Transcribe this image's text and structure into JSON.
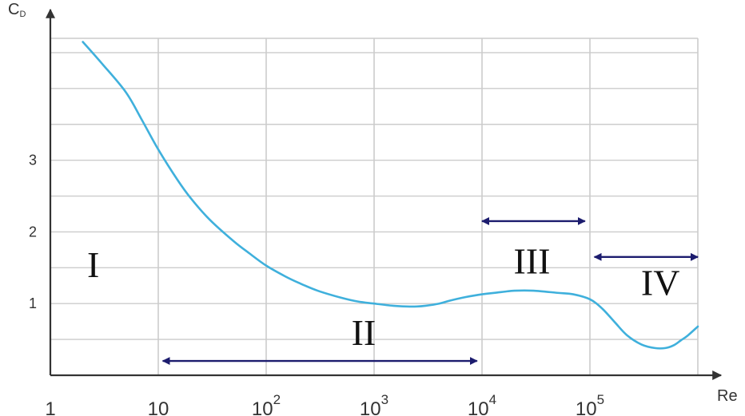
{
  "chart_data": {
    "type": "line",
    "title": "",
    "xlabel": "Re",
    "ylabel": "C",
    "ylabel_subscript": "D",
    "x_scale": "log",
    "xlim": [
      1,
      1000000
    ],
    "ylim": [
      0,
      4.7
    ],
    "grid": true,
    "x_ticks": [
      {
        "value": 1,
        "base": "1",
        "exp": ""
      },
      {
        "value": 10,
        "base": "10",
        "exp": ""
      },
      {
        "value": 100,
        "base": "10",
        "exp": "2"
      },
      {
        "value": 1000,
        "base": "10",
        "exp": "3"
      },
      {
        "value": 10000,
        "base": "10",
        "exp": "4"
      },
      {
        "value": 100000,
        "base": "10",
        "exp": "5"
      }
    ],
    "y_ticks": [
      {
        "value": 1,
        "label": "1"
      },
      {
        "value": 2,
        "label": "2"
      },
      {
        "value": 3,
        "label": "3"
      }
    ],
    "y_grid": [
      0.5,
      1,
      1.5,
      2,
      2.5,
      3,
      3.5,
      4,
      4.5
    ],
    "series": [
      {
        "color": "#3fb0dc",
        "x": [
          2,
          3,
          5,
          7,
          10,
          15,
          20,
          30,
          50,
          70,
          100,
          150,
          200,
          300,
          500,
          700,
          1000,
          1500,
          2000,
          2500,
          3000,
          4000,
          5000,
          7000,
          10000,
          15000,
          20000,
          30000,
          50000,
          70000,
          100000,
          130000,
          170000,
          220000,
          300000,
          400000,
          500000,
          600000,
          700000,
          800000,
          1000000
        ],
        "y": [
          4.65,
          4.35,
          3.95,
          3.57,
          3.15,
          2.73,
          2.47,
          2.17,
          1.87,
          1.7,
          1.53,
          1.38,
          1.29,
          1.18,
          1.08,
          1.03,
          1.0,
          0.97,
          0.96,
          0.96,
          0.97,
          1.0,
          1.04,
          1.09,
          1.13,
          1.16,
          1.18,
          1.18,
          1.15,
          1.13,
          1.06,
          0.93,
          0.74,
          0.56,
          0.43,
          0.38,
          0.38,
          0.42,
          0.49,
          0.55,
          0.68
        ]
      }
    ],
    "regions": [
      {
        "label": "I",
        "arrow": null,
        "label_at": {
          "x": 2.5,
          "y": 1.55
        }
      },
      {
        "label": "II",
        "arrow": [
          11,
          9000
        ],
        "arrow_y": 0.2,
        "label_at": {
          "x": 800,
          "y": 0.6
        }
      },
      {
        "label": "III",
        "arrow": [
          10000,
          90000
        ],
        "arrow_y": 2.15,
        "label_at": {
          "x": 29000,
          "y": 1.6
        }
      },
      {
        "label": "IV",
        "arrow": [
          110000,
          1000000
        ],
        "arrow_y": 1.65,
        "label_at": {
          "x": 450000,
          "y": 1.3
        }
      }
    ],
    "colors": {
      "curve": "#3fb0dc",
      "arrows": "#1c1c6e",
      "grid": "#cccccc",
      "axis": "#333333"
    }
  }
}
